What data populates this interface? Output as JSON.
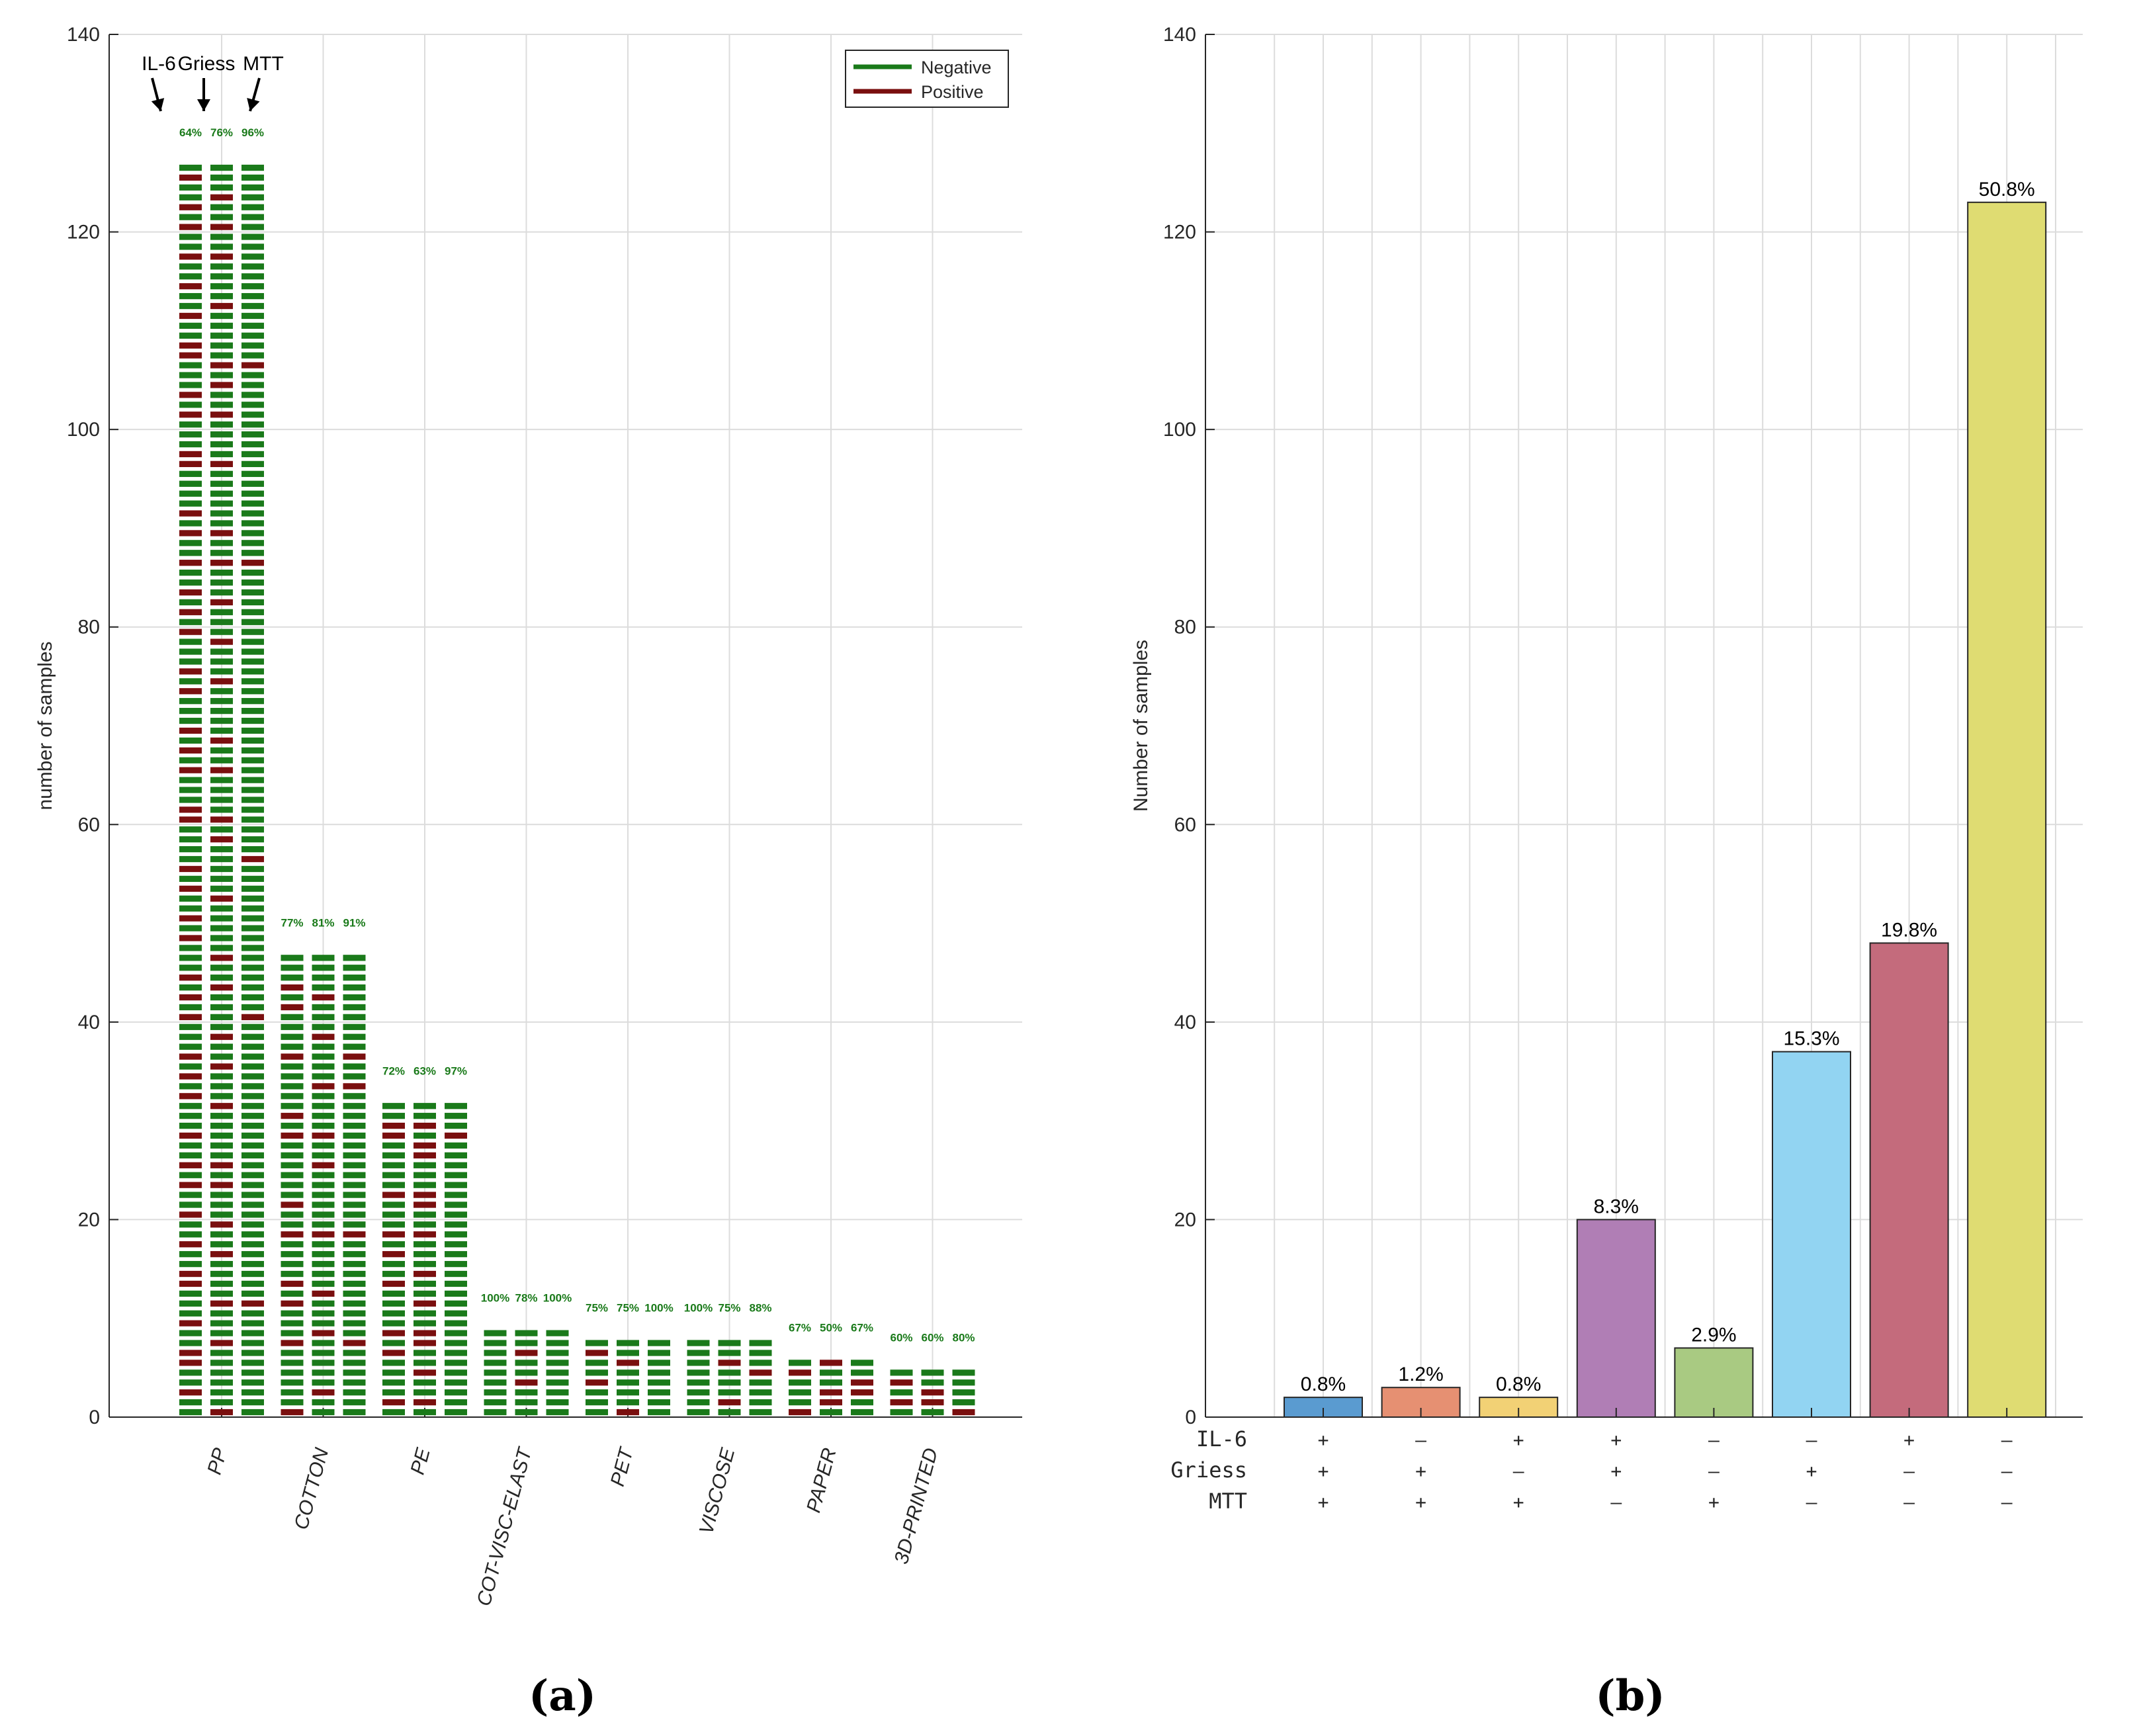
{
  "chart_data": [
    {
      "type": "bar",
      "panel": "(a)",
      "ylabel": "number of samples",
      "ylim": [
        0,
        140
      ],
      "yticks": [
        "0",
        "20",
        "40",
        "60",
        "80",
        "100",
        "120",
        "140"
      ],
      "grid": true,
      "legend": {
        "placement": "top-right",
        "entries": [
          "Negative",
          "Positive"
        ]
      },
      "colors": {
        "negative": "#1a7a1a",
        "positive": "#7a0f0f"
      },
      "arrow_labels": [
        "IL-6",
        "Griess",
        "MTT"
      ],
      "categories": [
        "PP",
        "COTTON",
        "PE",
        "COT-VISC-ELAST",
        "PET",
        "VISCOSE",
        "PAPER",
        "3D-PRINTED"
      ],
      "totals": [
        127,
        47,
        32,
        9,
        8,
        8,
        6,
        5
      ],
      "assays": [
        "IL-6",
        "Griess",
        "MTT"
      ],
      "percent_labels": [
        [
          "64%",
          "76%",
          "96%"
        ],
        [
          "77%",
          "81%",
          "91%"
        ],
        [
          "72%",
          "63%",
          "97%"
        ],
        [
          "100%",
          "78%",
          "100%"
        ],
        [
          "75%",
          "75%",
          "100%"
        ],
        [
          "100%",
          "75%",
          "88%"
        ],
        [
          "67%",
          "50%",
          "67%"
        ],
        [
          "60%",
          "60%",
          "80%"
        ]
      ],
      "negative_fraction": [
        [
          0.64,
          0.76,
          0.96
        ],
        [
          0.77,
          0.81,
          0.91
        ],
        [
          0.72,
          0.63,
          0.97
        ],
        [
          1.0,
          0.78,
          1.0
        ],
        [
          0.75,
          0.75,
          1.0
        ],
        [
          1.0,
          0.75,
          0.88
        ],
        [
          0.67,
          0.5,
          0.67
        ],
        [
          0.6,
          0.6,
          0.8
        ]
      ]
    },
    {
      "type": "bar",
      "panel": "(b)",
      "ylabel": "Number of samples",
      "ylim": [
        0,
        140
      ],
      "yticks": [
        "0",
        "20",
        "40",
        "60",
        "80",
        "100",
        "120",
        "140"
      ],
      "grid": true,
      "row_labels": [
        "IL-6",
        "Griess",
        "MTT"
      ],
      "bars": [
        {
          "value": 2,
          "label": "0.8%",
          "color": "#5a9bd0",
          "signs": [
            "+",
            "+",
            "+"
          ]
        },
        {
          "value": 3,
          "label": "1.2%",
          "color": "#e69072",
          "signs": [
            "–",
            "+",
            "+"
          ]
        },
        {
          "value": 2,
          "label": "0.8%",
          "color": "#f2d175",
          "signs": [
            "+",
            "–",
            "+"
          ]
        },
        {
          "value": 20,
          "label": "8.3%",
          "color": "#b07eb5",
          "signs": [
            "+",
            "+",
            "–"
          ]
        },
        {
          "value": 7,
          "label": "2.9%",
          "color": "#a9ca82",
          "signs": [
            "–",
            "–",
            "+"
          ]
        },
        {
          "value": 37,
          "label": "15.3%",
          "color": "#92d4f2",
          "signs": [
            "–",
            "+",
            "–"
          ]
        },
        {
          "value": 48,
          "label": "19.8%",
          "color": "#c46b7c",
          "signs": [
            "+",
            "–",
            "–"
          ]
        },
        {
          "value": 123,
          "label": "50.8%",
          "color": "#dfdc72",
          "signs": [
            "–",
            "–",
            "–"
          ]
        }
      ]
    }
  ]
}
